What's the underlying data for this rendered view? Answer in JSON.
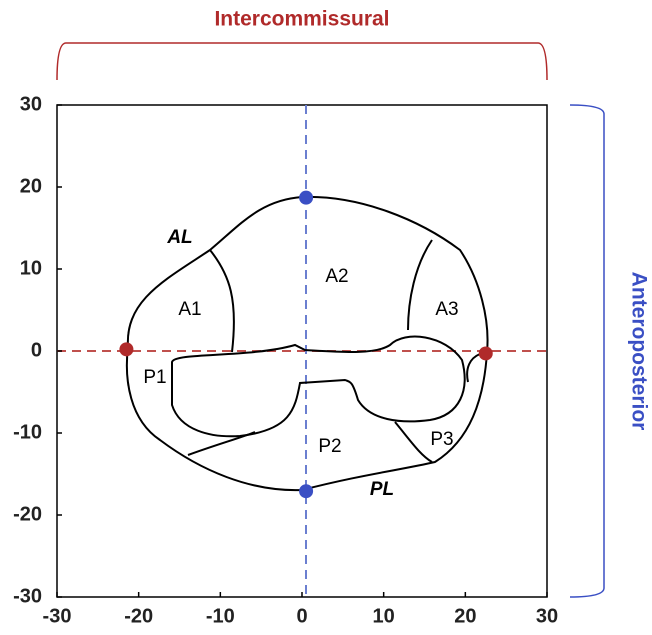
{
  "chart_data": {
    "type": "scatter",
    "top_label": "Intercommissural",
    "right_label": "Anteroposterior",
    "annotations": [
      "AL",
      "A1",
      "A2",
      "A3",
      "P1",
      "P2",
      "P3",
      "PL"
    ],
    "series": [
      {
        "color": "#b02a2a",
        "x": [
          -21.5,
          22.5
        ],
        "values": [
          0.2,
          -0.3
        ]
      },
      {
        "color": "#3a4fc4",
        "x": [
          0.5,
          0.5
        ],
        "values": [
          18.7,
          -17.1
        ]
      }
    ],
    "xlim": [
      -30,
      30
    ],
    "ylim": [
      -30,
      30
    ],
    "xticks": [
      -30,
      -20,
      -10,
      0,
      10,
      20,
      30
    ],
    "yticks": [
      -30,
      -20,
      -10,
      0,
      10,
      20,
      30
    ]
  }
}
